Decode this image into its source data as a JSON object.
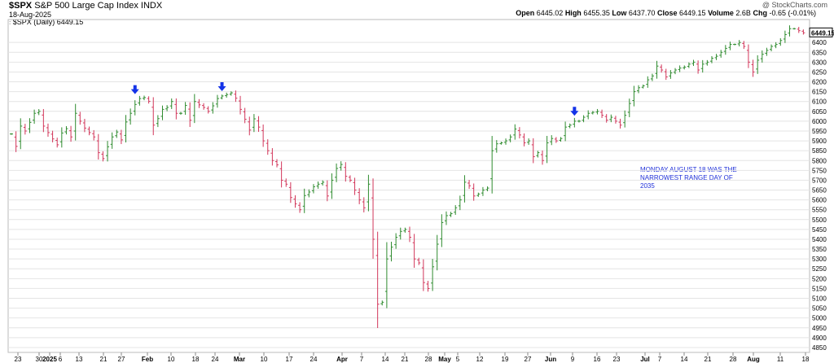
{
  "header": {
    "symbol": "$SPX",
    "name": "S&P 500 Large Cap Index",
    "exchange": "INDX",
    "date": "18-Aug-2025",
    "legend": "$SPX (Daily) 6449.15",
    "watermark": "@ StockCharts.com",
    "open_label": "Open",
    "open": "6445.02",
    "high_label": "High",
    "high": "6455.35",
    "low_label": "Low",
    "low": "6437.70",
    "close_label": "Close",
    "close": "6449.15",
    "volume_label": "Volume",
    "volume": "2.6B",
    "chg_label": "Chg",
    "chg": "-0.65 (-0.01%)",
    "last_price_tag": "6449.15"
  },
  "annotation": "MONDAY AUGUST 18 WAS THE NARROWEST RANGE DAY OF 2035",
  "colors": {
    "up": "#2e8b2e",
    "down": "#d2365a",
    "arrow": "#1433e8",
    "annotation": "#1e2fd9"
  },
  "chart_data": {
    "type": "ohlc",
    "yaxis": {
      "ticks": [
        4850,
        4900,
        4950,
        5000,
        5050,
        5100,
        5150,
        5200,
        5250,
        5300,
        5350,
        5400,
        5450,
        5500,
        5550,
        5600,
        5650,
        5700,
        5750,
        5800,
        5850,
        5900,
        5950,
        6000,
        6050,
        6100,
        6150,
        6200,
        6250,
        6300,
        6350,
        6400
      ],
      "ylim": [
        4825,
        6500
      ],
      "position": "right"
    },
    "xaxis": {
      "labels": [
        {
          "t": "23",
          "m": false
        },
        {
          "t": "30",
          "m": false
        },
        {
          "t": "2025",
          "m": true
        },
        {
          "t": "6",
          "m": false
        },
        {
          "t": "13",
          "m": false
        },
        {
          "t": "21",
          "m": false
        },
        {
          "t": "27",
          "m": false
        },
        {
          "t": "Feb",
          "m": true
        },
        {
          "t": "10",
          "m": false
        },
        {
          "t": "18",
          "m": false
        },
        {
          "t": "24",
          "m": false
        },
        {
          "t": "Mar",
          "m": true
        },
        {
          "t": "10",
          "m": false
        },
        {
          "t": "17",
          "m": false
        },
        {
          "t": "24",
          "m": false
        },
        {
          "t": "Apr",
          "m": true
        },
        {
          "t": "7",
          "m": false
        },
        {
          "t": "14",
          "m": false
        },
        {
          "t": "21",
          "m": false
        },
        {
          "t": "28",
          "m": false
        },
        {
          "t": "May",
          "m": true
        },
        {
          "t": "5",
          "m": false
        },
        {
          "t": "12",
          "m": false
        },
        {
          "t": "19",
          "m": false
        },
        {
          "t": "27",
          "m": false
        },
        {
          "t": "Jun",
          "m": true
        },
        {
          "t": "9",
          "m": false
        },
        {
          "t": "16",
          "m": false
        },
        {
          "t": "23",
          "m": false
        },
        {
          "t": "Jul",
          "m": true
        },
        {
          "t": "7",
          "m": false
        },
        {
          "t": "14",
          "m": false
        },
        {
          "t": "21",
          "m": false
        },
        {
          "t": "28",
          "m": false
        },
        {
          "t": "Aug",
          "m": true
        },
        {
          "t": "11",
          "m": false
        },
        {
          "t": "18",
          "m": false
        }
      ]
    },
    "markers": [
      {
        "bar": 27,
        "price": 6150,
        "dir": "down"
      },
      {
        "bar": 46,
        "price": 6165,
        "dir": "down"
      },
      {
        "bar": 123,
        "price": 6040,
        "dir": "down"
      },
      {
        "bar": 189,
        "price": 6520,
        "dir": "right"
      },
      {
        "bar": 187,
        "price": 6430,
        "dir": "down"
      },
      {
        "bar": 206,
        "price": 6340,
        "dir": "up"
      }
    ],
    "closes": [
      5935,
      5872,
      5975,
      5950,
      5994,
      6040,
      6050,
      5975,
      5942,
      5910,
      5880,
      5940,
      5962,
      5920,
      6040,
      6000,
      5965,
      5942,
      5920,
      5840,
      5810,
      5870,
      5920,
      5945,
      5905,
      5996,
      6040,
      6085,
      6115,
      6120,
      6101,
      5980,
      6013,
      6060,
      6070,
      6100,
      6040,
      6040,
      6080,
      6005,
      6100,
      6083,
      6070,
      6050,
      6078,
      6115,
      6128,
      6135,
      6144,
      6117,
      6060,
      6010,
      5955,
      6012,
      5970,
      5900,
      5850,
      5800,
      5778,
      5700,
      5680,
      5612,
      5580,
      5550,
      5622,
      5640,
      5667,
      5680,
      5690,
      5620,
      5700,
      5760,
      5780,
      5720,
      5700,
      5650,
      5600,
      5560,
      5680,
      5400,
      5070,
      5080,
      5300,
      5360,
      5410,
      5440,
      5450,
      5410,
      5300,
      5280,
      5180,
      5150,
      5260,
      5375,
      5485,
      5520,
      5530,
      5560,
      5600,
      5690,
      5672,
      5620,
      5630,
      5650,
      5660,
      5850,
      5885,
      5890,
      5900,
      5920,
      5960,
      5930,
      5890,
      5900,
      5820,
      5840,
      5800,
      5890,
      5912,
      5900,
      5912,
      5970,
      5980,
      6000,
      6000,
      6020,
      6040,
      6045,
      6050,
      6030,
      6005,
      6020,
      6000,
      5980,
      6030,
      6090,
      6150,
      6170,
      6180,
      6210,
      6230,
      6280,
      6260,
      6225,
      6245,
      6260,
      6270,
      6275,
      6290,
      6300,
      6260,
      6290,
      6300,
      6320,
      6330,
      6350,
      6370,
      6390,
      6390,
      6400,
      6380,
      6300,
      6250,
      6310,
      6340,
      6360,
      6380,
      6390,
      6410,
      6440,
      6470,
      6470,
      6460,
      6449
    ]
  }
}
